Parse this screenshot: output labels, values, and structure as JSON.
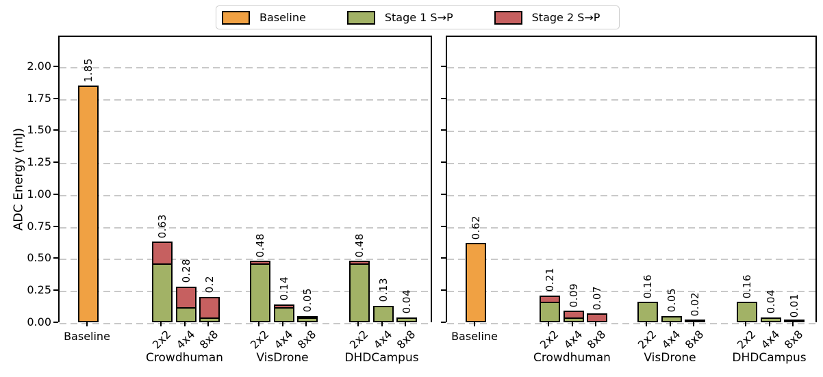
{
  "chart_data": {
    "type": "bar",
    "stacked": true,
    "ylabel": "ADC Energy (mJ)",
    "ylim": [
      0,
      2.24
    ],
    "yticks": [
      "0.00",
      "0.25",
      "0.50",
      "0.75",
      "1.00",
      "1.25",
      "1.50",
      "1.75",
      "2.00"
    ],
    "grid": "horizontal dashed",
    "legend_position": "top center",
    "series": [
      {
        "name": "Baseline",
        "color": "#F0A143"
      },
      {
        "name": "Stage 1 S→P",
        "color": "#A2B266"
      },
      {
        "name": "Stage 2 S→P",
        "color": "#C66060"
      }
    ],
    "panels": [
      {
        "name": "left",
        "groups": [
          {
            "label": "",
            "bars": [
              {
                "tick": "Baseline",
                "label": "1.85",
                "values": {
                  "Baseline": 1.85
                }
              }
            ]
          },
          {
            "label": "Crowdhuman",
            "bars": [
              {
                "tick": "2x2",
                "label": "0.63",
                "values": {
                  "Stage 1 S→P": 0.46,
                  "Stage 2 S→P": 0.17
                }
              },
              {
                "tick": "4x4",
                "label": "0.28",
                "values": {
                  "Stage 1 S→P": 0.12,
                  "Stage 2 S→P": 0.16
                }
              },
              {
                "tick": "8x8",
                "label": "0.2",
                "values": {
                  "Stage 1 S→P": 0.04,
                  "Stage 2 S→P": 0.16
                }
              }
            ]
          },
          {
            "label": "VisDrone",
            "bars": [
              {
                "tick": "2x2",
                "label": "0.48",
                "values": {
                  "Stage 1 S→P": 0.46,
                  "Stage 2 S→P": 0.02
                }
              },
              {
                "tick": "4x4",
                "label": "0.14",
                "values": {
                  "Stage 1 S→P": 0.12,
                  "Stage 2 S→P": 0.02
                }
              },
              {
                "tick": "8x8",
                "label": "0.05",
                "values": {
                  "Stage 1 S→P": 0.04,
                  "Stage 2 S→P": 0.01
                }
              }
            ]
          },
          {
            "label": "DHDCampus",
            "bars": [
              {
                "tick": "2x2",
                "label": "0.48",
                "values": {
                  "Stage 1 S→P": 0.46,
                  "Stage 2 S→P": 0.02
                }
              },
              {
                "tick": "4x4",
                "label": "0.13",
                "values": {
                  "Stage 1 S→P": 0.13
                }
              },
              {
                "tick": "8x8",
                "label": "0.04",
                "values": {
                  "Stage 1 S→P": 0.04
                }
              }
            ]
          }
        ]
      },
      {
        "name": "right",
        "groups": [
          {
            "label": "",
            "bars": [
              {
                "tick": "Baseline",
                "label": "0.62",
                "values": {
                  "Baseline": 0.62
                }
              }
            ]
          },
          {
            "label": "Crowdhuman",
            "bars": [
              {
                "tick": "2x2",
                "label": "0.21",
                "values": {
                  "Stage 1 S→P": 0.16,
                  "Stage 2 S→P": 0.05
                }
              },
              {
                "tick": "4x4",
                "label": "0.09",
                "values": {
                  "Stage 1 S→P": 0.04,
                  "Stage 2 S→P": 0.05
                }
              },
              {
                "tick": "8x8",
                "label": "0.07",
                "values": {
                  "Stage 1 S→P": 0.01,
                  "Stage 2 S→P": 0.06
                }
              }
            ]
          },
          {
            "label": "VisDrone",
            "bars": [
              {
                "tick": "2x2",
                "label": "0.16",
                "values": {
                  "Stage 1 S→P": 0.16
                }
              },
              {
                "tick": "4x4",
                "label": "0.05",
                "values": {
                  "Stage 1 S→P": 0.05
                }
              },
              {
                "tick": "8x8",
                "label": "0.02",
                "values": {
                  "Stage 1 S→P": 0.02
                }
              }
            ]
          },
          {
            "label": "DHDCampus",
            "bars": [
              {
                "tick": "2x2",
                "label": "0.16",
                "values": {
                  "Stage 1 S→P": 0.16
                }
              },
              {
                "tick": "4x4",
                "label": "0.04",
                "values": {
                  "Stage 1 S→P": 0.04
                }
              },
              {
                "tick": "8x8",
                "label": "0.01",
                "values": {
                  "Stage 1 S→P": 0.01
                }
              }
            ]
          }
        ]
      }
    ]
  }
}
